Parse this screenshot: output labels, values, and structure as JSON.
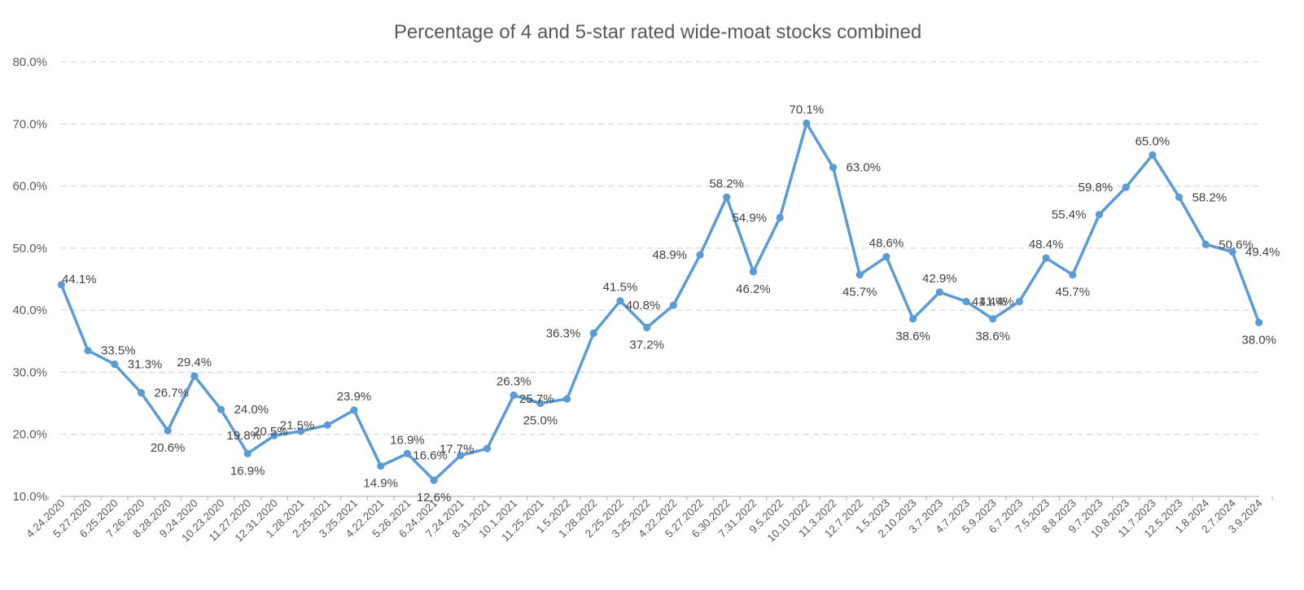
{
  "chart_data": {
    "type": "line",
    "title": "Percentage of 4 and 5-star rated wide-moat stocks combined",
    "xlabel": "",
    "ylabel": "",
    "ylim": [
      10,
      80
    ],
    "yticks": [
      10,
      20,
      30,
      40,
      50,
      60,
      70,
      80
    ],
    "ytick_labels": [
      "10.0%",
      "20.0%",
      "30.0%",
      "40.0%",
      "50.0%",
      "60.0%",
      "70.0%",
      "80.0%"
    ],
    "grid": true,
    "legend": "none",
    "color": "#5b9bd5",
    "categories": [
      "4.24.2020",
      "5.27.2020",
      "6.25.2020",
      "7.26.2020",
      "8.28.2020",
      "9.24.2020",
      "10.23.2020",
      "11.27.2020",
      "12.31.2020",
      "1.28.2021",
      "2.25.2021",
      "3.25.2021",
      "4.22.2021",
      "5.26.2021",
      "6.24.2021",
      "7.24.2021",
      "8.31.2021",
      "10.1.2021",
      "11.25.2021",
      "1.5.2022",
      "1.28.2022",
      "2.25.2022",
      "3.25.2022",
      "4.22.2022",
      "5.27.2022",
      "6.30.2022",
      "7.31.2022",
      "9.5.2022",
      "10.10.2022",
      "11.3.2022",
      "12.7.2022",
      "1.5.2023",
      "2.10.2023",
      "3.7.2023",
      "4.7.2023",
      "5.9.2023",
      "6.7.2023",
      "7.5.2023",
      "8.8.2023",
      "9.7.2023",
      "10.8.2023",
      "11.7.2023",
      "12.5.2023",
      "1.8.2024",
      "2.7.2024",
      "3.9.2024"
    ],
    "series": [
      {
        "name": "Percentage of 4 and 5-star rated wide-moat stocks combined",
        "values": [
          44.1,
          33.5,
          31.3,
          26.7,
          20.6,
          29.4,
          24.0,
          16.9,
          19.8,
          20.5,
          21.5,
          23.9,
          14.9,
          16.9,
          12.6,
          16.6,
          17.7,
          26.3,
          25.0,
          25.7,
          36.3,
          41.5,
          37.2,
          40.8,
          48.9,
          58.2,
          46.2,
          54.9,
          70.1,
          63.0,
          45.7,
          48.6,
          38.6,
          42.9,
          41.4,
          38.6,
          41.4,
          48.4,
          45.7,
          55.4,
          59.8,
          65.0,
          58.2,
          50.6,
          49.4,
          38.0
        ],
        "data_labels": [
          "44.1%",
          "33.5%",
          "31.3%",
          "26.7%",
          "20.6%",
          "29.4%",
          "24.0%",
          "16.9%",
          "19.8%",
          "20.5%",
          "21.5%",
          "23.9%",
          "14.9%",
          "16.9%",
          "12.6%",
          "16.6%",
          "17.7%",
          "26.3%",
          "25.0%",
          "25.7%",
          "36.3%",
          "41.5%",
          "37.2%",
          "40.8%",
          "48.9%",
          "58.2%",
          "46.2%",
          "54.9%",
          "70.1%",
          "63.0%",
          "45.7%",
          "48.6%",
          "38.6%",
          "42.9%",
          "41.4%",
          "38.6%",
          "41.4%",
          "48.4%",
          "45.7%",
          "55.4%",
          "59.8%",
          "65.0%",
          "58.2%",
          "50.6%",
          "49.4%",
          "38.0%"
        ]
      }
    ]
  }
}
